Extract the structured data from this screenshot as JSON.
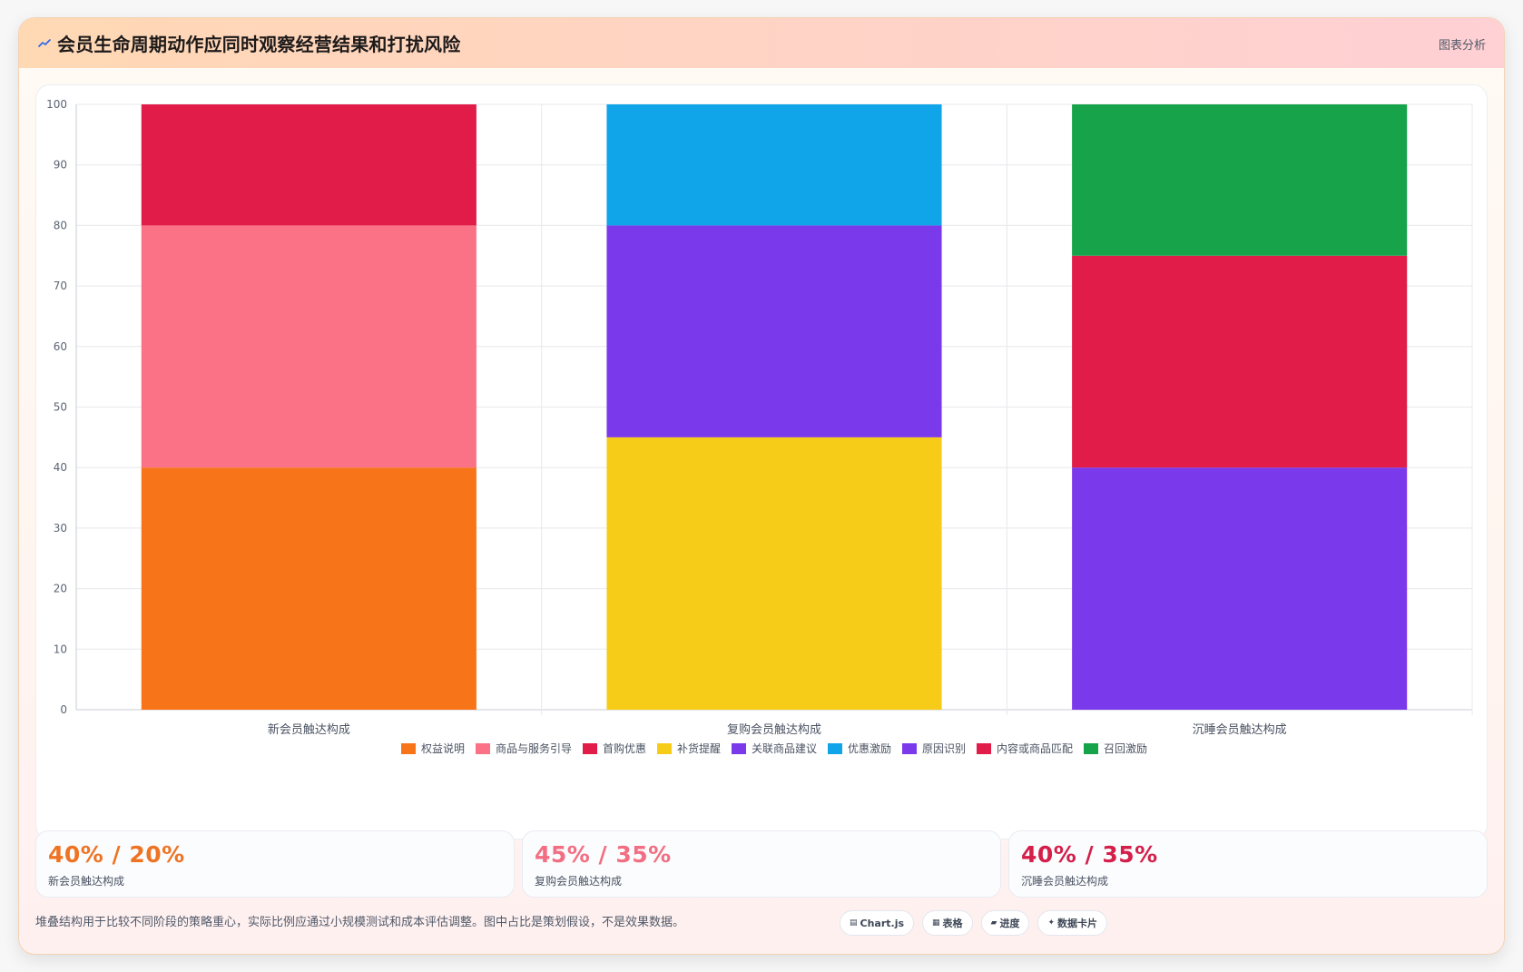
{
  "header": {
    "title": "会员生命周期动作应同时观察经营结果和打扰风险",
    "tag": "图表分析",
    "logo_icon": "chart-trend-icon"
  },
  "chart_data": {
    "type": "bar",
    "stacked": true,
    "categories": [
      "新会员触达构成",
      "复购会员触达构成",
      "沉睡会员触达构成"
    ],
    "ylim": [
      0,
      100
    ],
    "yticks": [
      0,
      10,
      20,
      30,
      40,
      50,
      60,
      70,
      80,
      90,
      100
    ],
    "grid": true,
    "legend_position": "bottom",
    "series": [
      {
        "name": "权益说明",
        "color": "#f77518",
        "values": [
          40,
          0,
          0
        ]
      },
      {
        "name": "商品与服务引导",
        "color": "#fb7186",
        "values": [
          40,
          0,
          0
        ]
      },
      {
        "name": "首购优惠",
        "color": "#e11c48",
        "values": [
          20,
          0,
          0
        ]
      },
      {
        "name": "补货提醒",
        "color": "#f7cc18",
        "values": [
          0,
          45,
          0
        ]
      },
      {
        "name": "关联商品建议",
        "color": "#7b39ec",
        "values": [
          0,
          35,
          0
        ]
      },
      {
        "name": "优惠激励",
        "color": "#10a5e9",
        "values": [
          0,
          20,
          0
        ]
      },
      {
        "name": "原因识别",
        "color": "#7b39ec",
        "values": [
          0,
          0,
          40
        ]
      },
      {
        "name": "内容或商品匹配",
        "color": "#e11c48",
        "values": [
          0,
          0,
          35
        ]
      },
      {
        "name": "召回激励",
        "color": "#16a34a",
        "values": [
          0,
          0,
          25
        ]
      }
    ]
  },
  "stats": [
    {
      "value": "40% / 20%",
      "label": "新会员触达构成",
      "color": "#ee7424"
    },
    {
      "value": "45% / 35%",
      "label": "复购会员触达构成",
      "color": "#f26e82"
    },
    {
      "value": "40% / 35%",
      "label": "沉睡会员触达构成",
      "color": "#d41f4a"
    }
  ],
  "note": "堆叠结构用于比较不同阶段的策略重心，实际比例应通过小规模测试和成本评估调整。图中占比是策划假设，不是效果数据。",
  "chips": [
    {
      "label": "Chart.js",
      "icon": "chart-icon",
      "glyph": "▤"
    },
    {
      "label": "表格",
      "icon": "table-icon",
      "glyph": "▦"
    },
    {
      "label": "进度",
      "icon": "progress-icon",
      "glyph": "▰"
    },
    {
      "label": "数据卡片",
      "icon": "card-icon",
      "glyph": "✦"
    }
  ]
}
